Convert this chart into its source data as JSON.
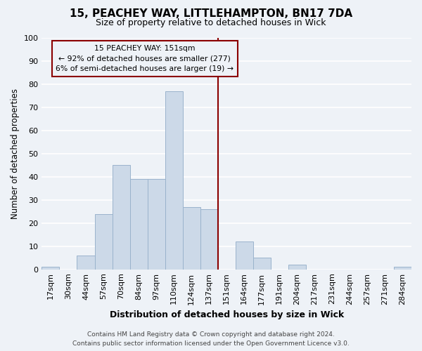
{
  "title": "15, PEACHEY WAY, LITTLEHAMPTON, BN17 7DA",
  "subtitle": "Size of property relative to detached houses in Wick",
  "xlabel": "Distribution of detached houses by size in Wick",
  "ylabel": "Number of detached properties",
  "bin_labels": [
    "17sqm",
    "30sqm",
    "44sqm",
    "57sqm",
    "70sqm",
    "84sqm",
    "97sqm",
    "110sqm",
    "124sqm",
    "137sqm",
    "151sqm",
    "164sqm",
    "177sqm",
    "191sqm",
    "204sqm",
    "217sqm",
    "231sqm",
    "244sqm",
    "257sqm",
    "271sqm",
    "284sqm"
  ],
  "bar_values": [
    1,
    0,
    6,
    24,
    45,
    39,
    39,
    77,
    27,
    26,
    0,
    12,
    5,
    0,
    2,
    0,
    0,
    0,
    0,
    0,
    1
  ],
  "bar_color": "#ccd9e8",
  "bar_edge_color": "#9ab3cc",
  "property_line_color": "#8b0000",
  "annotation_title": "15 PEACHEY WAY: 151sqm",
  "annotation_line1": "← 92% of detached houses are smaller (277)",
  "annotation_line2": "6% of semi-detached houses are larger (19) →",
  "annotation_box_edge_color": "#8b0000",
  "ylim": [
    0,
    100
  ],
  "yticks": [
    0,
    10,
    20,
    30,
    40,
    50,
    60,
    70,
    80,
    90,
    100
  ],
  "footer_line1": "Contains HM Land Registry data © Crown copyright and database right 2024.",
  "footer_line2": "Contains public sector information licensed under the Open Government Licence v3.0.",
  "background_color": "#eef2f7",
  "grid_color": "#ffffff"
}
